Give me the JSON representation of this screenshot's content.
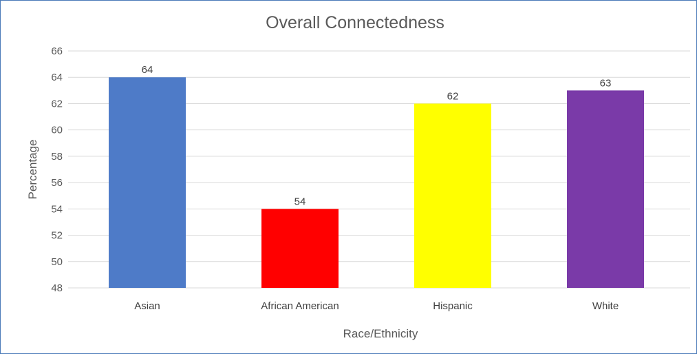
{
  "chart_data": {
    "type": "bar",
    "title": "Overall Connectedness",
    "xlabel": "Race/Ethnicity",
    "ylabel": "Percentage",
    "categories": [
      "Asian",
      "African American",
      "Hispanic",
      "White"
    ],
    "values": [
      64,
      54,
      62,
      63
    ],
    "data_labels": [
      "64",
      "54",
      "62",
      "63"
    ],
    "colors": [
      "#4e7bc8",
      "#ff0000",
      "#ffff00",
      "#7a3aa8"
    ],
    "ylim": [
      48,
      66
    ],
    "yticks": [
      48,
      50,
      52,
      54,
      56,
      58,
      60,
      62,
      64,
      66
    ],
    "grid": true,
    "legend": "none"
  }
}
